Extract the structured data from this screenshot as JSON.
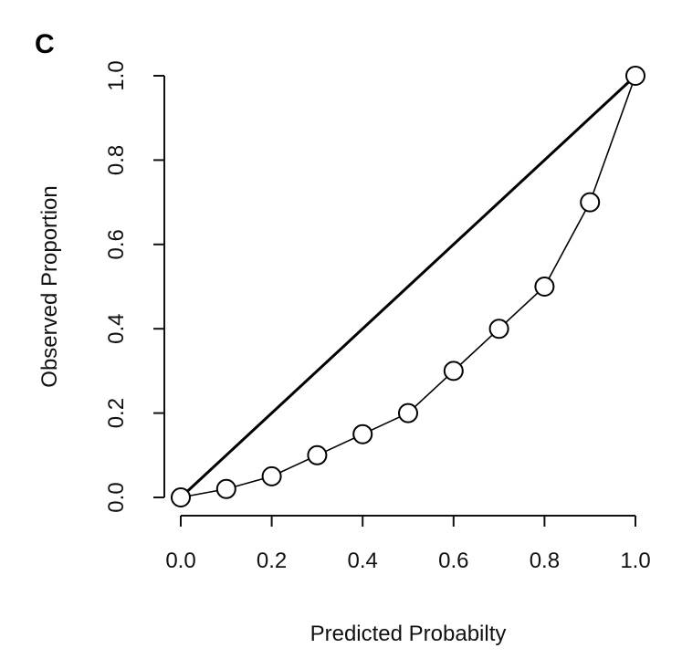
{
  "chart_data": {
    "type": "line",
    "panel_label": "C",
    "xlabel": "Predicted Probabilty",
    "ylabel": "Observed Proportion",
    "xlim": [
      0,
      1
    ],
    "ylim": [
      0,
      1
    ],
    "x_ticks": [
      "0.0",
      "0.2",
      "0.4",
      "0.6",
      "0.8",
      "1.0"
    ],
    "y_ticks": [
      "0.0",
      "0.2",
      "0.4",
      "0.6",
      "0.8",
      "1.0"
    ],
    "grid": false,
    "legend": "none",
    "reference_line": {
      "x": [
        0,
        1
      ],
      "y": [
        0,
        1
      ]
    },
    "series": [
      {
        "x": [
          0.0,
          0.1,
          0.2,
          0.3,
          0.4,
          0.5,
          0.6,
          0.7,
          0.8,
          0.9,
          1.0
        ],
        "y": [
          0.0,
          0.02,
          0.05,
          0.1,
          0.15,
          0.2,
          0.3,
          0.4,
          0.5,
          0.7,
          1.0
        ],
        "marker": "open-circle"
      }
    ],
    "colors": {
      "line": "#000000",
      "marker_fill": "#ffffff"
    }
  }
}
